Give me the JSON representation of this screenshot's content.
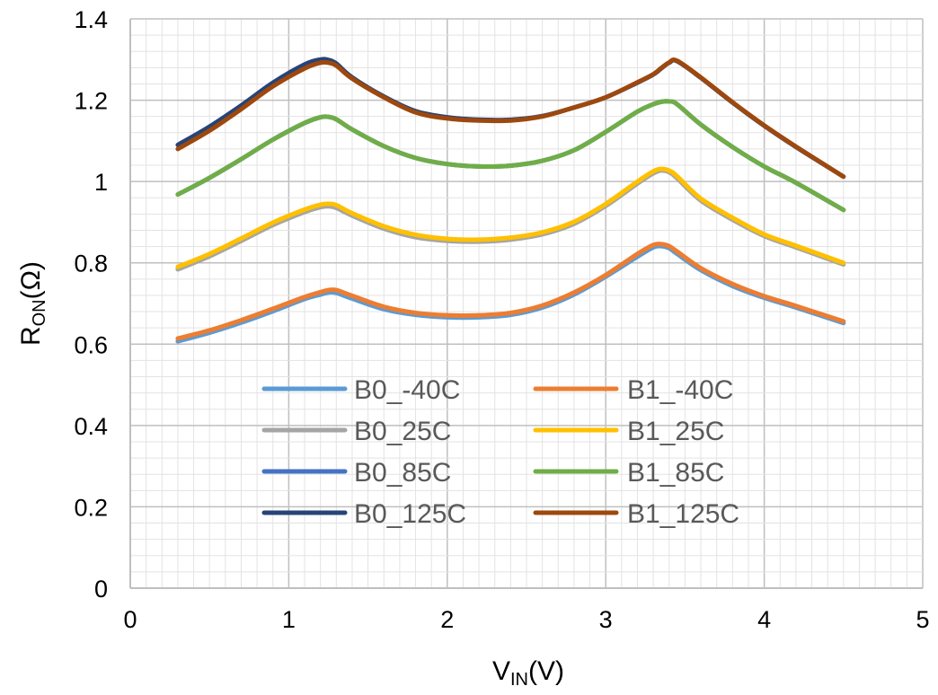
{
  "chart_data": {
    "type": "line",
    "title": "",
    "xlabel": {
      "main": "V",
      "sub": "IN",
      "rest": "(V)"
    },
    "ylabel": {
      "main": "R",
      "sub": "ON",
      "rest": "(Ω)"
    },
    "xlim": [
      0,
      5
    ],
    "ylim": [
      0,
      1.4
    ],
    "xticks": [
      "0",
      "1",
      "2",
      "3",
      "4",
      "5"
    ],
    "yticks": [
      "0",
      "0.2",
      "0.4",
      "0.6",
      "0.8",
      "1",
      "1.2",
      "1.4"
    ],
    "grid": true,
    "legend_position": "center-bottom",
    "x": [
      0.3,
      0.5,
      0.7,
      0.9,
      1.1,
      1.2,
      1.25,
      1.3,
      1.4,
      1.6,
      1.8,
      2.0,
      2.2,
      2.4,
      2.6,
      2.8,
      3.0,
      3.2,
      3.3,
      3.35,
      3.4,
      3.45,
      3.6,
      3.8,
      4.0,
      4.2,
      4.5
    ],
    "series": [
      {
        "name": "B0_-40C",
        "color": "#5B9BD5",
        "values": [
          0.607,
          0.628,
          0.653,
          0.681,
          0.711,
          0.722,
          0.727,
          0.726,
          0.712,
          0.686,
          0.672,
          0.666,
          0.666,
          0.672,
          0.69,
          0.722,
          0.766,
          0.815,
          0.838,
          0.841,
          0.836,
          0.822,
          0.782,
          0.743,
          0.714,
          0.69,
          0.652
        ]
      },
      {
        "name": "B1_-40C",
        "color": "#ED7D31",
        "values": [
          0.614,
          0.634,
          0.659,
          0.687,
          0.716,
          0.728,
          0.733,
          0.733,
          0.719,
          0.692,
          0.677,
          0.671,
          0.671,
          0.677,
          0.695,
          0.727,
          0.77,
          0.822,
          0.844,
          0.846,
          0.841,
          0.828,
          0.787,
          0.748,
          0.718,
          0.694,
          0.656
        ]
      },
      {
        "name": "B0_25C",
        "color": "#A5A5A5",
        "values": [
          0.784,
          0.816,
          0.854,
          0.893,
          0.925,
          0.937,
          0.939,
          0.935,
          0.916,
          0.884,
          0.863,
          0.854,
          0.852,
          0.857,
          0.87,
          0.896,
          0.94,
          0.995,
          1.02,
          1.027,
          1.023,
          1.008,
          0.953,
          0.906,
          0.866,
          0.838,
          0.796
        ]
      },
      {
        "name": "B1_25C",
        "color": "#FFC000",
        "values": [
          0.79,
          0.822,
          0.86,
          0.899,
          0.931,
          0.943,
          0.945,
          0.942,
          0.922,
          0.89,
          0.869,
          0.859,
          0.857,
          0.862,
          0.875,
          0.901,
          0.945,
          1.0,
          1.025,
          1.031,
          1.027,
          1.013,
          0.958,
          0.911,
          0.87,
          0.842,
          0.8
        ]
      },
      {
        "name": "B0_85C",
        "color": "#4472C4",
        "values": [
          0.968,
          1.009,
          1.055,
          1.103,
          1.144,
          1.158,
          1.159,
          1.153,
          1.128,
          1.087,
          1.058,
          1.043,
          1.037,
          1.039,
          1.051,
          1.077,
          1.122,
          1.172,
          1.19,
          1.196,
          1.197,
          1.19,
          1.14,
          1.085,
          1.037,
          0.997,
          0.93
        ]
      },
      {
        "name": "B1_85C",
        "color": "#70AD47",
        "values": [
          0.968,
          1.009,
          1.055,
          1.103,
          1.144,
          1.158,
          1.159,
          1.153,
          1.128,
          1.087,
          1.058,
          1.043,
          1.037,
          1.039,
          1.051,
          1.077,
          1.122,
          1.172,
          1.19,
          1.196,
          1.197,
          1.19,
          1.14,
          1.085,
          1.037,
          0.997,
          0.93
        ]
      },
      {
        "name": "B0_125C",
        "color": "#264478",
        "values": [
          1.09,
          1.135,
          1.187,
          1.243,
          1.288,
          1.3,
          1.299,
          1.29,
          1.256,
          1.209,
          1.173,
          1.158,
          1.152,
          1.152,
          1.161,
          1.182,
          1.207,
          1.243,
          1.263,
          1.278,
          1.292,
          1.296,
          1.255,
          1.194,
          1.137,
          1.085,
          1.012
        ]
      },
      {
        "name": "B1_125C",
        "color": "#9E480E",
        "values": [
          1.08,
          1.125,
          1.178,
          1.234,
          1.278,
          1.292,
          1.292,
          1.285,
          1.253,
          1.207,
          1.17,
          1.155,
          1.15,
          1.15,
          1.16,
          1.182,
          1.207,
          1.244,
          1.264,
          1.279,
          1.293,
          1.297,
          1.256,
          1.195,
          1.138,
          1.086,
          1.012
        ]
      }
    ]
  }
}
